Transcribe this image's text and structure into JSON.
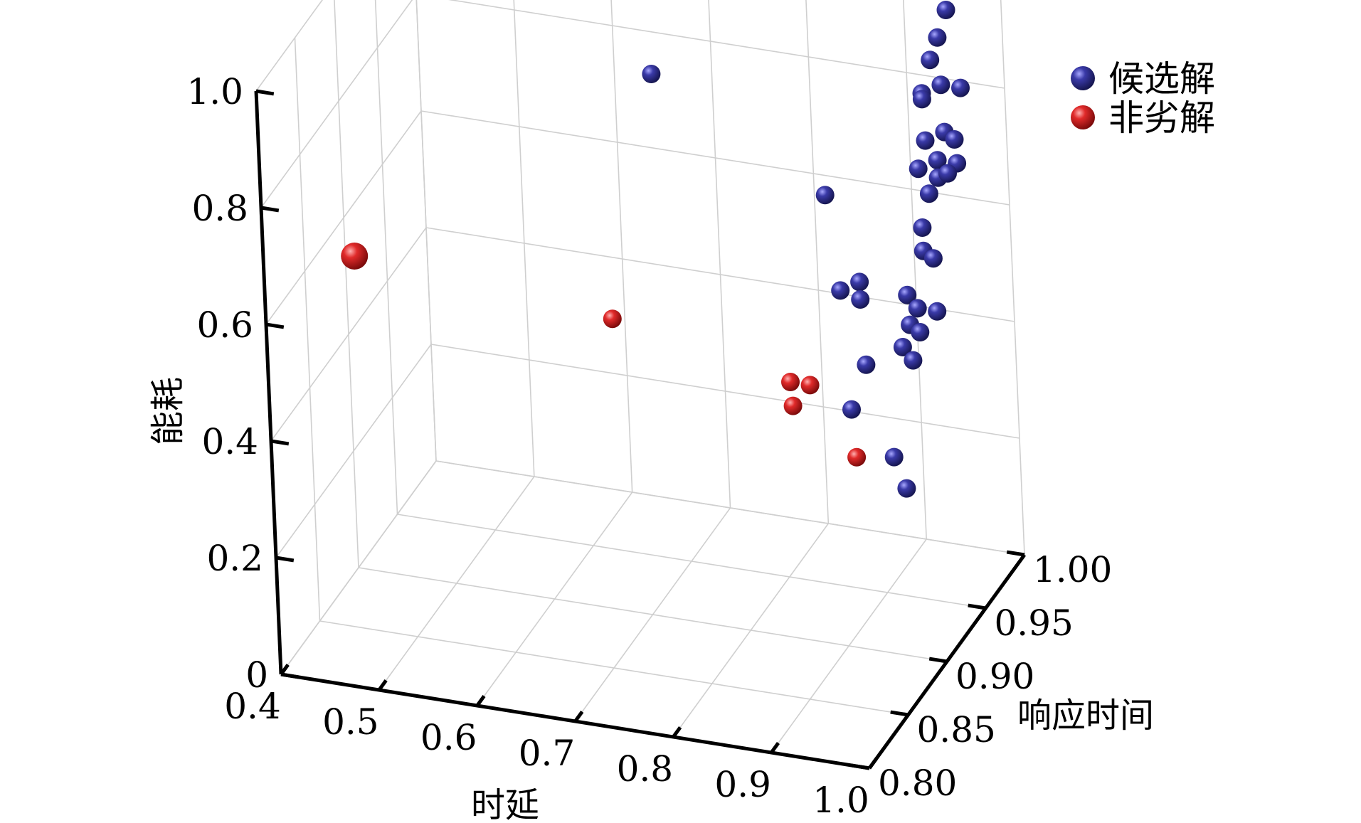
{
  "chart_data": {
    "type": "scatter3d",
    "xlabel": "时延",
    "ylabel": "响应时间",
    "zlabel": "能耗",
    "x_ticks": [
      "0.4",
      "0.5",
      "0.6",
      "0.7",
      "0.8",
      "0.9",
      "1.0"
    ],
    "y_ticks": [
      "0.80",
      "0.85",
      "0.90",
      "0.95",
      "1.00"
    ],
    "z_ticks": [
      "0",
      "0.2",
      "0.4",
      "0.6",
      "0.8",
      "1.0"
    ],
    "xlim": [
      0.4,
      1.0
    ],
    "ylim": [
      0.8,
      1.0
    ],
    "zlim": [
      0,
      1.0
    ],
    "grid": true,
    "legend": "top-right",
    "series": [
      {
        "name": "候选解",
        "color": "#2e2e8f",
        "points": [
          [
            0.96,
            0.98,
            0.96
          ],
          [
            0.95,
            0.98,
            0.91
          ],
          [
            0.95,
            0.97,
            0.89
          ],
          [
            0.96,
            0.97,
            0.85
          ],
          [
            0.98,
            0.97,
            0.85
          ],
          [
            0.94,
            0.97,
            0.83
          ],
          [
            0.94,
            0.97,
            0.82
          ],
          [
            0.68,
            0.95,
            0.83
          ],
          [
            0.97,
            0.96,
            0.79
          ],
          [
            0.98,
            0.96,
            0.78
          ],
          [
            0.95,
            0.96,
            0.77
          ],
          [
            0.97,
            0.95,
            0.76
          ],
          [
            0.99,
            0.95,
            0.76
          ],
          [
            0.95,
            0.95,
            0.74
          ],
          [
            0.97,
            0.95,
            0.73
          ],
          [
            0.98,
            0.95,
            0.74
          ],
          [
            0.87,
            0.93,
            0.71
          ],
          [
            0.96,
            0.95,
            0.7
          ],
          [
            0.96,
            0.94,
            0.66
          ],
          [
            0.96,
            0.94,
            0.62
          ],
          [
            0.97,
            0.94,
            0.61
          ],
          [
            0.91,
            0.92,
            0.59
          ],
          [
            0.89,
            0.92,
            0.57
          ],
          [
            0.91,
            0.92,
            0.56
          ],
          [
            0.95,
            0.93,
            0.56
          ],
          [
            0.96,
            0.93,
            0.54
          ],
          [
            0.98,
            0.93,
            0.54
          ],
          [
            0.96,
            0.92,
            0.53
          ],
          [
            0.97,
            0.92,
            0.52
          ],
          [
            0.96,
            0.91,
            0.51
          ],
          [
            0.93,
            0.9,
            0.49
          ],
          [
            0.97,
            0.91,
            0.49
          ],
          [
            0.93,
            0.88,
            0.45
          ],
          [
            0.98,
            0.87,
            0.4
          ],
          [
            1.0,
            0.86,
            0.37
          ]
        ]
      },
      {
        "name": "非劣解",
        "color": "#d42020",
        "points": [
          [
            0.46,
            0.84,
            0.66
          ],
          [
            0.68,
            0.89,
            0.52
          ],
          [
            0.86,
            0.89,
            0.46
          ],
          [
            0.88,
            0.89,
            0.46
          ],
          [
            0.87,
            0.88,
            0.44
          ],
          [
            0.95,
            0.86,
            0.41
          ]
        ]
      }
    ]
  }
}
